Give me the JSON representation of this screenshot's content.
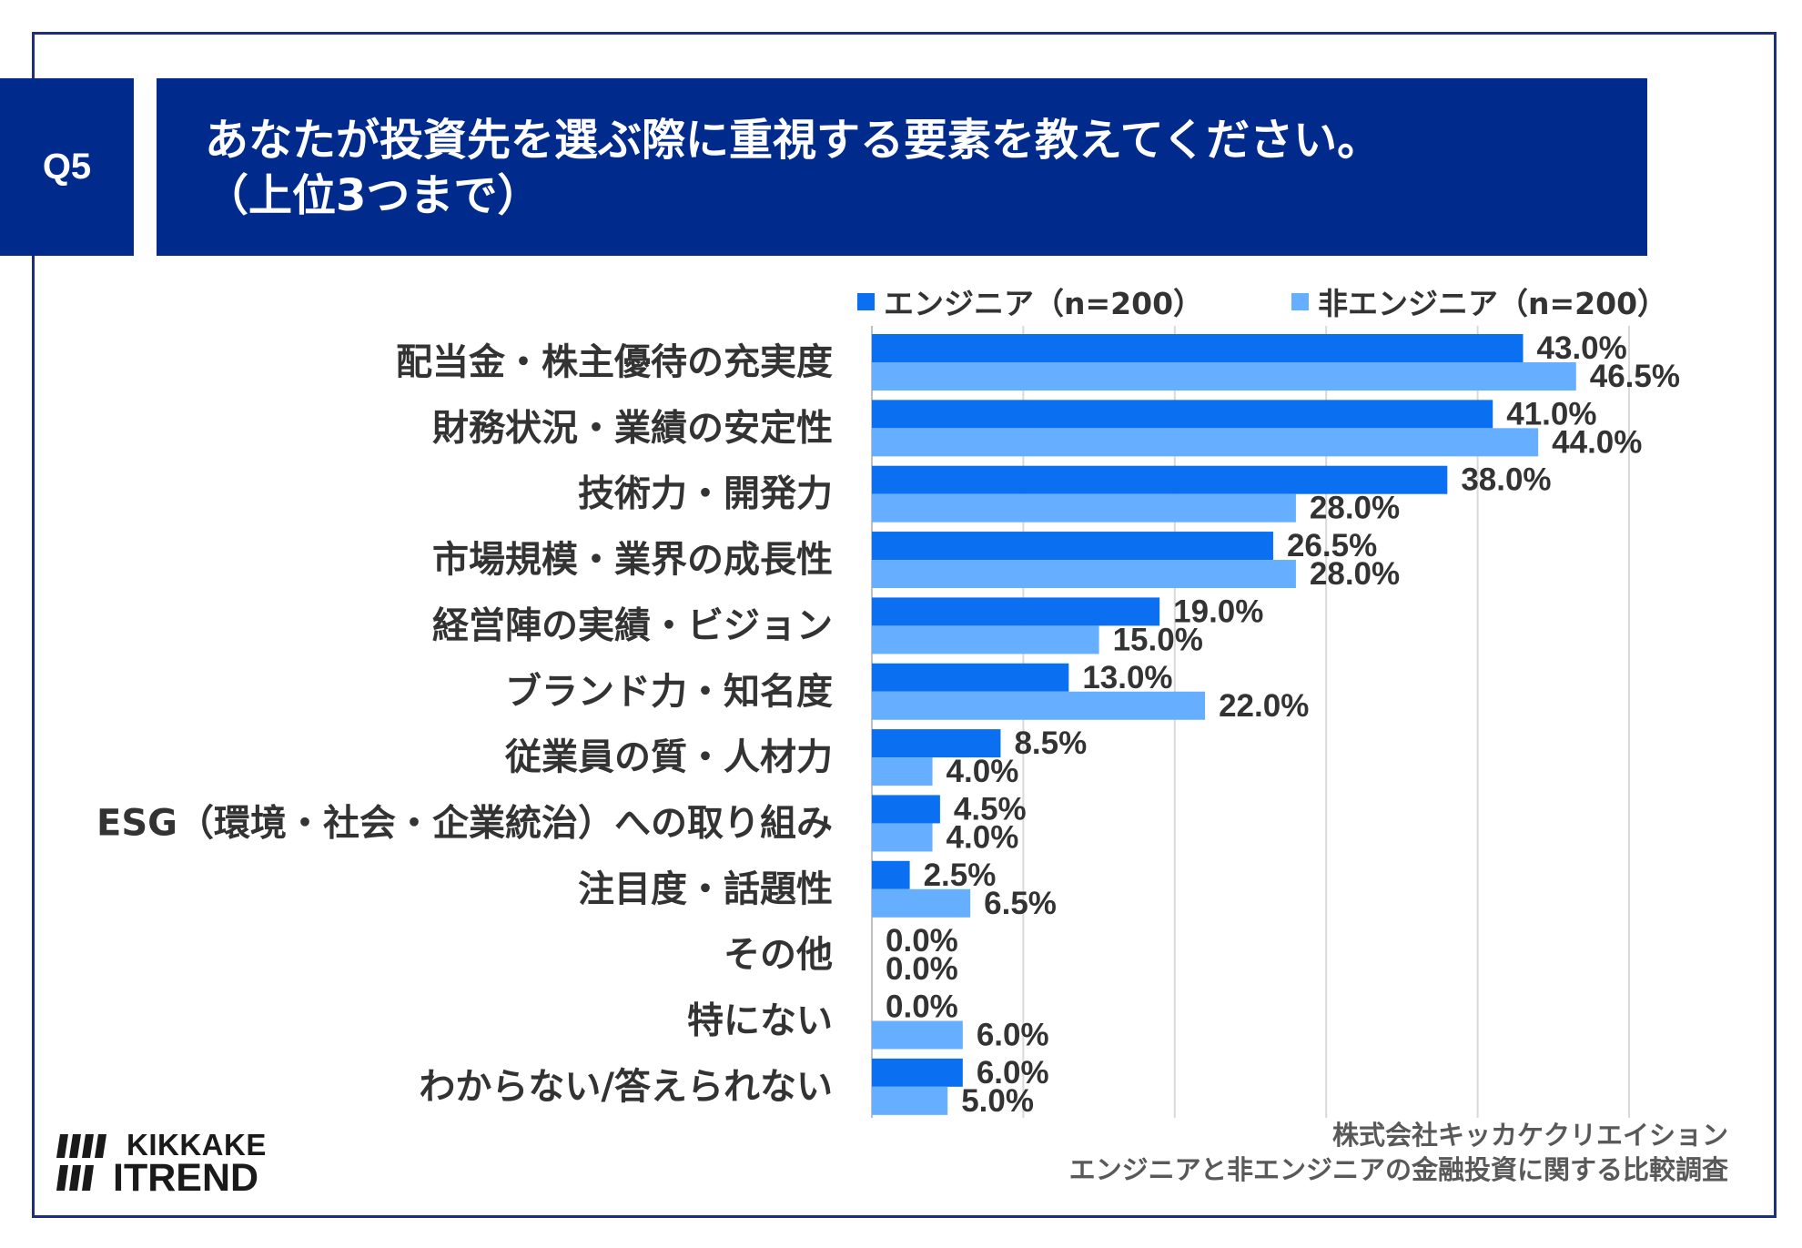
{
  "chart_data": {
    "type": "bar",
    "question_label": "Q5",
    "title_lines": [
      "あなたが投資先を選ぶ際に重視する要素を教えてください。",
      "（上位3つまで）"
    ],
    "categories": [
      "配当金・株主優待の充実度",
      "財務状況・業績の安定性",
      "技術力・開発力",
      "市場規模・業界の成長性",
      "経営陣の実績・ビジョン",
      "ブランド力・知名度",
      "従業員の質・人材力",
      "ESG（環境・社会・企業統治）への取り組み",
      "注目度・話題性",
      "その他",
      "特にない",
      "わからない/答えられない"
    ],
    "series": [
      {
        "name": "エンジニア（n=200）",
        "values": [
          43.0,
          41.0,
          38.0,
          26.5,
          19.0,
          13.0,
          8.5,
          4.5,
          2.5,
          0.0,
          0.0,
          6.0
        ],
        "labels": [
          "43.0%",
          "41.0%",
          "38.0%",
          "26.5%",
          "19.0%",
          "13.0%",
          "8.5%",
          "4.5%",
          "2.5%",
          "0.0%",
          "0.0%",
          "6.0%"
        ],
        "color": "#0a6ff0"
      },
      {
        "name": "非エンジニア（n=200）",
        "values": [
          46.5,
          44.0,
          28.0,
          28.0,
          15.0,
          22.0,
          4.0,
          4.0,
          6.5,
          0.0,
          6.0,
          5.0
        ],
        "labels": [
          "46.5%",
          "44.0%",
          "28.0%",
          "28.0%",
          "15.0%",
          "22.0%",
          "4.0%",
          "4.0%",
          "6.5%",
          "0.0%",
          "6.0%",
          "5.0%"
        ],
        "color": "#66aeff"
      }
    ],
    "xlim": [
      0,
      50
    ],
    "major_unit": 10,
    "grid": true
  },
  "source": {
    "lines": [
      "株式会社キッカケクリエイション",
      "エンジニアと非エンジニアの金融投資に関する比較調査"
    ]
  },
  "logo": {
    "line1": "KIKKAKE",
    "line2": "ITREND"
  },
  "colors": {
    "header_bg": "#002a8c",
    "frame": "#1d2f7e",
    "gridline": "#d9d9d9",
    "axis": "#bfbfbf",
    "logo": "#1a1a1a"
  }
}
